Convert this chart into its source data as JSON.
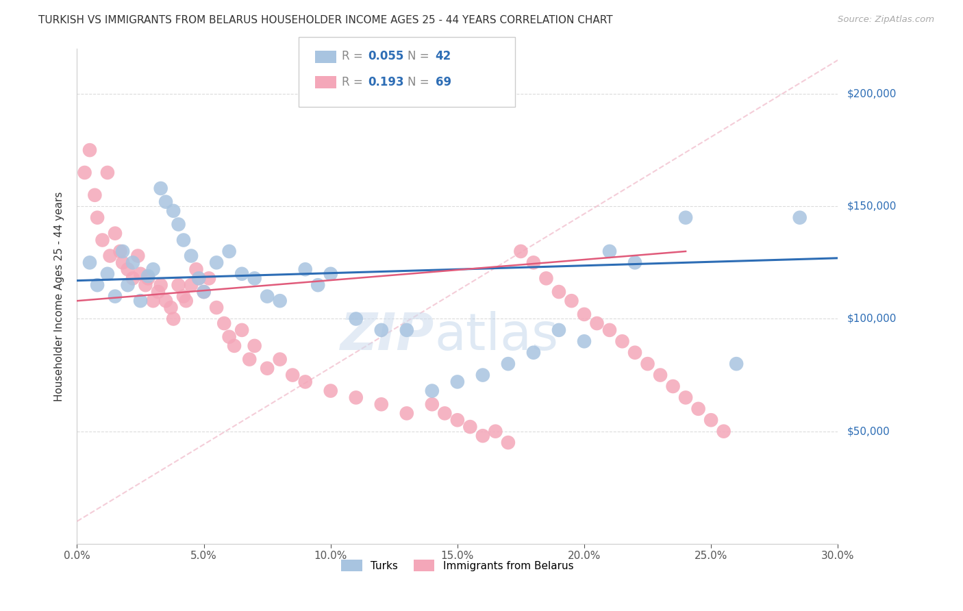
{
  "title": "TURKISH VS IMMIGRANTS FROM BELARUS HOUSEHOLDER INCOME AGES 25 - 44 YEARS CORRELATION CHART",
  "source": "Source: ZipAtlas.com",
  "ylabel": "Householder Income Ages 25 - 44 years",
  "xlabel_ticks": [
    "0.0%",
    "5.0%",
    "10.0%",
    "15.0%",
    "20.0%",
    "25.0%",
    "30.0%"
  ],
  "xlabel_values": [
    0.0,
    0.05,
    0.1,
    0.15,
    0.2,
    0.25,
    0.3
  ],
  "ylim": [
    0,
    220000
  ],
  "xlim": [
    0.0,
    0.3
  ],
  "ytick_labels": [
    "$50,000",
    "$100,000",
    "$150,000",
    "$200,000"
  ],
  "ytick_values": [
    50000,
    100000,
    150000,
    200000
  ],
  "turk_color": "#a8c4e0",
  "belarus_color": "#f4a7b9",
  "turk_line_color": "#2d6db5",
  "belarus_line_color": "#e05a7a",
  "dashed_line_color": "#f0b8c8",
  "turks_x": [
    0.005,
    0.008,
    0.012,
    0.015,
    0.018,
    0.02,
    0.022,
    0.025,
    0.028,
    0.03,
    0.033,
    0.035,
    0.038,
    0.04,
    0.042,
    0.045,
    0.048,
    0.05,
    0.055,
    0.06,
    0.065,
    0.07,
    0.075,
    0.08,
    0.09,
    0.095,
    0.1,
    0.11,
    0.12,
    0.13,
    0.14,
    0.15,
    0.16,
    0.17,
    0.18,
    0.19,
    0.2,
    0.21,
    0.22,
    0.24,
    0.26,
    0.285
  ],
  "turks_y": [
    125000,
    115000,
    120000,
    110000,
    130000,
    115000,
    125000,
    108000,
    119000,
    122000,
    158000,
    152000,
    148000,
    142000,
    135000,
    128000,
    118000,
    112000,
    125000,
    130000,
    120000,
    118000,
    110000,
    108000,
    122000,
    115000,
    120000,
    100000,
    95000,
    95000,
    68000,
    72000,
    75000,
    80000,
    85000,
    95000,
    90000,
    130000,
    125000,
    145000,
    80000,
    145000
  ],
  "belarus_x": [
    0.003,
    0.005,
    0.007,
    0.008,
    0.01,
    0.012,
    0.013,
    0.015,
    0.017,
    0.018,
    0.02,
    0.022,
    0.024,
    0.025,
    0.027,
    0.028,
    0.03,
    0.032,
    0.033,
    0.035,
    0.037,
    0.038,
    0.04,
    0.042,
    0.043,
    0.045,
    0.047,
    0.048,
    0.05,
    0.052,
    0.055,
    0.058,
    0.06,
    0.062,
    0.065,
    0.068,
    0.07,
    0.075,
    0.08,
    0.085,
    0.09,
    0.1,
    0.11,
    0.12,
    0.13,
    0.14,
    0.145,
    0.15,
    0.155,
    0.16,
    0.165,
    0.17,
    0.175,
    0.18,
    0.185,
    0.19,
    0.195,
    0.2,
    0.205,
    0.21,
    0.215,
    0.22,
    0.225,
    0.23,
    0.235,
    0.24,
    0.245,
    0.25,
    0.255
  ],
  "belarus_y": [
    165000,
    175000,
    155000,
    145000,
    135000,
    165000,
    128000,
    138000,
    130000,
    125000,
    122000,
    118000,
    128000,
    120000,
    115000,
    118000,
    108000,
    112000,
    115000,
    108000,
    105000,
    100000,
    115000,
    110000,
    108000,
    115000,
    122000,
    118000,
    112000,
    118000,
    105000,
    98000,
    92000,
    88000,
    95000,
    82000,
    88000,
    78000,
    82000,
    75000,
    72000,
    68000,
    65000,
    62000,
    58000,
    62000,
    58000,
    55000,
    52000,
    48000,
    50000,
    45000,
    130000,
    125000,
    118000,
    112000,
    108000,
    102000,
    98000,
    95000,
    90000,
    85000,
    80000,
    75000,
    70000,
    65000,
    60000,
    55000,
    50000
  ]
}
